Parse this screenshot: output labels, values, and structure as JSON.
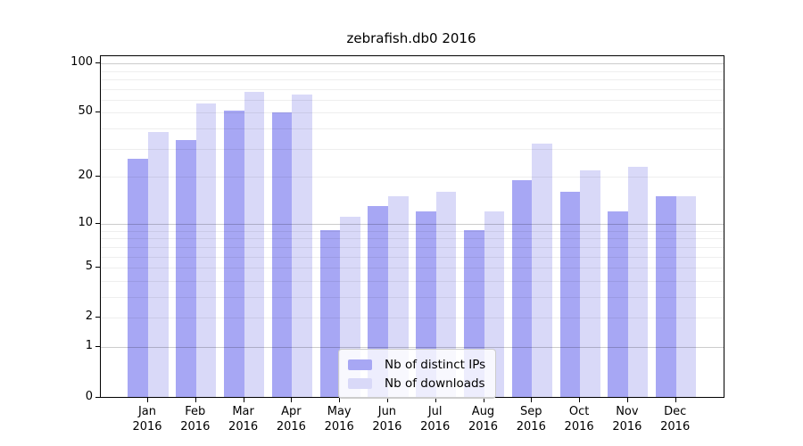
{
  "title": "zebrafish.db0 2016",
  "chart_data": {
    "type": "bar",
    "title": "zebrafish.db0 2016",
    "scale": "log10(value+1)",
    "categories": [
      [
        "Jan",
        "2016"
      ],
      [
        "Feb",
        "2016"
      ],
      [
        "Mar",
        "2016"
      ],
      [
        "Apr",
        "2016"
      ],
      [
        "May",
        "2016"
      ],
      [
        "Jun",
        "2016"
      ],
      [
        "Jul",
        "2016"
      ],
      [
        "Aug",
        "2016"
      ],
      [
        "Sep",
        "2016"
      ],
      [
        "Oct",
        "2016"
      ],
      [
        "Nov",
        "2016"
      ],
      [
        "Dec",
        "2016"
      ]
    ],
    "series": [
      {
        "name": "Nb of distinct IPs",
        "color": "#a7a7f4",
        "values": [
          26,
          34,
          51,
          50,
          9,
          13,
          12,
          9,
          19,
          16,
          12,
          15
        ]
      },
      {
        "name": "Nb of downloads",
        "color": "#d9d9f8",
        "values": [
          38,
          57,
          67,
          64,
          11,
          15,
          16,
          12,
          32,
          22,
          23,
          15
        ]
      }
    ],
    "yticks": [
      0,
      1,
      2,
      5,
      10,
      20,
      50,
      100
    ],
    "grid_major": [
      1,
      10,
      100
    ],
    "grid_minor": [
      2,
      3,
      4,
      5,
      6,
      7,
      8,
      9,
      20,
      30,
      40,
      50,
      60,
      70,
      80,
      90
    ],
    "ylim": [
      0,
      110
    ],
    "xlabel": "",
    "ylabel": "",
    "grid": "on",
    "legend_position": "lower center"
  }
}
